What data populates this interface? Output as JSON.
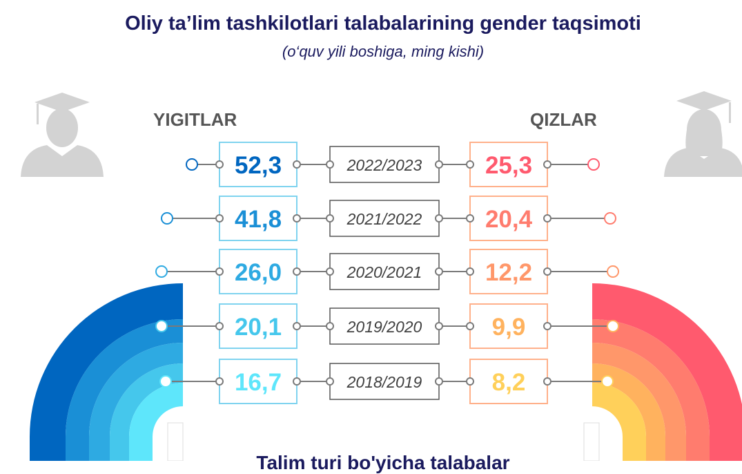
{
  "title": "Oliy ta’lim tashkilotlari talabalarining gender taqsimoti",
  "subtitle": "(o‘quv yili boshiga, ming kishi)",
  "labels": {
    "male": "YIGITLAR",
    "female": "QIZLAR"
  },
  "footer": "Talim turi bo'yicha talabalar",
  "icons": {
    "male": "graduate-male-icon",
    "female": "graduate-female-icon"
  },
  "colors": {
    "male": [
      "#0066c0",
      "#1a8fd6",
      "#2eaae2",
      "#45c7ec",
      "#5ee6fb"
    ],
    "female": [
      "#ff5a6e",
      "#ff7c6e",
      "#ff976a",
      "#ffb25e",
      "#ffd05a"
    ],
    "year_box_border": "#555555",
    "connector": "#7a7a7a"
  },
  "chart_data": {
    "type": "table",
    "title": "Oliy ta’lim tashkilotlari talabalarining gender taqsimoti",
    "subtitle": "(o‘quv yili boshiga, ming kishi)",
    "categories": [
      "2022/2023",
      "2021/2022",
      "2020/2021",
      "2019/2020",
      "2018/2019"
    ],
    "series": [
      {
        "name": "YIGITLAR",
        "values": [
          52.3,
          41.8,
          26.0,
          20.1,
          16.7
        ],
        "labels": [
          "52,3",
          "41,8",
          "26,0",
          "20,1",
          "16,7"
        ]
      },
      {
        "name": "QIZLAR",
        "values": [
          25.3,
          20.4,
          12.2,
          9.9,
          8.2
        ],
        "labels": [
          "25,3",
          "20,4",
          "12,2",
          "9,9",
          "8,2"
        ]
      }
    ]
  }
}
